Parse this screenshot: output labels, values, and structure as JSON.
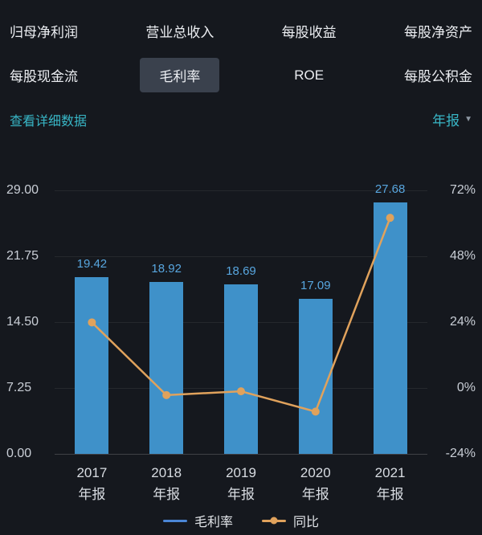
{
  "tabs": {
    "items": [
      {
        "label": "归母净利润",
        "selected": false
      },
      {
        "label": "营业总收入",
        "selected": false
      },
      {
        "label": "每股收益",
        "selected": false
      },
      {
        "label": "每股净资产",
        "selected": false
      },
      {
        "label": "每股现金流",
        "selected": false
      },
      {
        "label": "毛利率",
        "selected": true
      },
      {
        "label": "ROE",
        "selected": false
      },
      {
        "label": "每股公积金",
        "selected": false
      }
    ]
  },
  "subheader": {
    "detail_link": "查看详细数据",
    "period_label": "年报",
    "dropdown_icon": "▼"
  },
  "chart_data": {
    "type": "bar+line",
    "categories": [
      "2017",
      "2018",
      "2019",
      "2020",
      "2021"
    ],
    "category_sublabel": "年报",
    "series": [
      {
        "name": "毛利率",
        "type": "bar",
        "axis": "left",
        "color": "#3f91c9",
        "values": [
          19.42,
          18.92,
          18.69,
          17.09,
          27.68
        ]
      },
      {
        "name": "同比",
        "type": "line",
        "axis": "right",
        "color": "#e0a25c",
        "values": [
          23.9,
          -2.6,
          -1.2,
          -8.6,
          62.0
        ]
      }
    ],
    "left_axis": {
      "min": 0,
      "max": 29,
      "ticks": [
        "29.00",
        "21.75",
        "14.50",
        "7.25",
        "0.00"
      ]
    },
    "right_axis": {
      "min": -24,
      "max": 72,
      "ticks": [
        "72%",
        "48%",
        "24%",
        "0%",
        "-24%"
      ]
    },
    "legend": [
      {
        "label": "毛利率",
        "color": "#4b86d6",
        "marker": false
      },
      {
        "label": "同比",
        "color": "#e0a25c",
        "marker": true
      }
    ],
    "grid": true,
    "legend_position": "bottom"
  }
}
